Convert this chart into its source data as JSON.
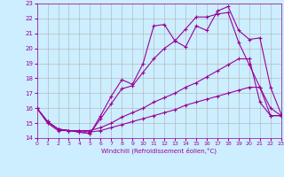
{
  "background_color": "#cceeff",
  "grid_color": "#b0b0b0",
  "line_color": "#990099",
  "xlabel": "Windchill (Refroidissement éolien,°C)",
  "xlim": [
    0,
    23
  ],
  "ylim": [
    14,
    23
  ],
  "x_ticks": [
    0,
    1,
    2,
    3,
    4,
    5,
    6,
    7,
    8,
    9,
    10,
    11,
    12,
    13,
    14,
    15,
    16,
    17,
    18,
    19,
    20,
    21,
    22,
    23
  ],
  "y_ticks": [
    14,
    15,
    16,
    17,
    18,
    19,
    20,
    21,
    22,
    23
  ],
  "line1_x": [
    0,
    1,
    2,
    3,
    4,
    5,
    6,
    7,
    8,
    9,
    10,
    11,
    12,
    13,
    14,
    15,
    16,
    17,
    18,
    19,
    20,
    21,
    22,
    23
  ],
  "line1_y": [
    16.0,
    15.1,
    14.6,
    14.5,
    14.4,
    14.3,
    15.5,
    16.8,
    17.9,
    17.6,
    19.0,
    21.5,
    21.6,
    20.5,
    20.1,
    21.5,
    21.2,
    22.5,
    22.8,
    21.2,
    20.6,
    20.7,
    17.4,
    15.6
  ],
  "line2_x": [
    0,
    1,
    2,
    3,
    4,
    5,
    6,
    7,
    8,
    9,
    10,
    11,
    12,
    13,
    14,
    15,
    16,
    17,
    18,
    19,
    20,
    21,
    22,
    23
  ],
  "line2_y": [
    16.0,
    15.0,
    14.5,
    14.5,
    14.4,
    14.3,
    15.3,
    16.3,
    17.3,
    17.5,
    18.4,
    19.3,
    20.0,
    20.5,
    21.3,
    22.1,
    22.1,
    22.3,
    22.4,
    20.4,
    18.9,
    17.4,
    16.0,
    15.5
  ],
  "line3_x": [
    0,
    1,
    2,
    3,
    4,
    5,
    6,
    7,
    8,
    9,
    10,
    11,
    12,
    13,
    14,
    15,
    16,
    17,
    18,
    19,
    20,
    21,
    22,
    23
  ],
  "line3_y": [
    16.0,
    15.1,
    14.6,
    14.5,
    14.5,
    14.5,
    14.7,
    15.0,
    15.4,
    15.7,
    16.0,
    16.4,
    16.7,
    17.0,
    17.4,
    17.7,
    18.1,
    18.5,
    18.9,
    19.3,
    19.3,
    16.4,
    15.5,
    15.5
  ],
  "line4_x": [
    0,
    1,
    2,
    3,
    4,
    5,
    6,
    7,
    8,
    9,
    10,
    11,
    12,
    13,
    14,
    15,
    16,
    17,
    18,
    19,
    20,
    21,
    22,
    23
  ],
  "line4_y": [
    16.0,
    15.1,
    14.6,
    14.5,
    14.5,
    14.4,
    14.5,
    14.7,
    14.9,
    15.1,
    15.3,
    15.5,
    15.7,
    15.9,
    16.2,
    16.4,
    16.6,
    16.8,
    17.0,
    17.2,
    17.4,
    17.4,
    15.5,
    15.5
  ]
}
